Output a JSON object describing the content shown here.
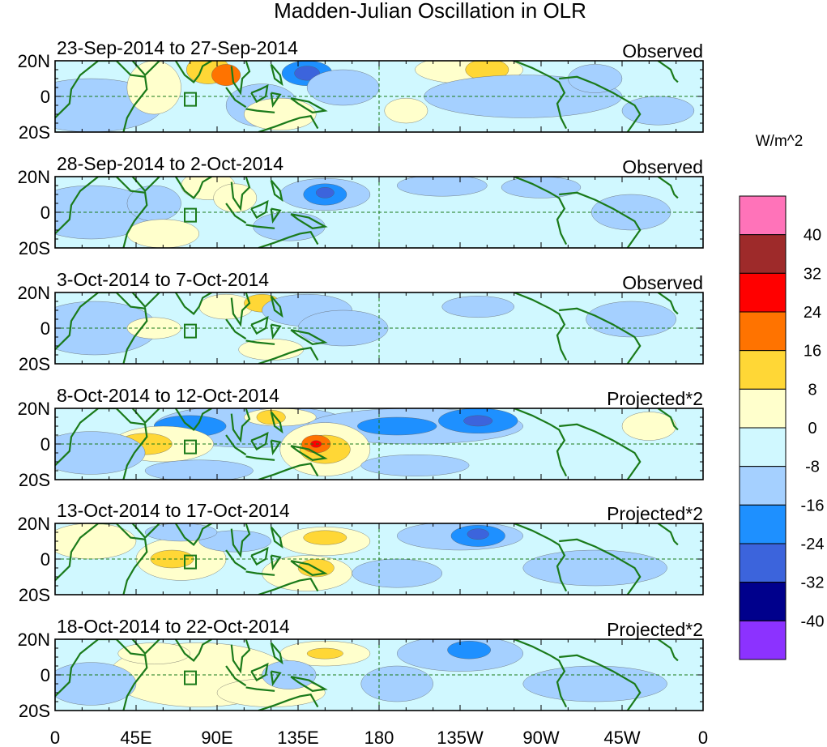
{
  "chart_data": {
    "type": "heatmap",
    "title": "Madden-Julian Oscillation in OLR",
    "units": "W/m^2",
    "lat_ticks": [
      "20N",
      "0",
      "20S"
    ],
    "lon_ticks": [
      "0",
      "45E",
      "90E",
      "135E",
      "180",
      "135W",
      "90W",
      "45W",
      "0"
    ],
    "lon_range": [
      0,
      360
    ],
    "lat_range": [
      -20,
      20
    ],
    "reference_lines": {
      "longitude": 180,
      "latitude": 0
    },
    "colorbar": {
      "labels": [
        "40",
        "32",
        "24",
        "16",
        "8",
        "0",
        "-8",
        "-16",
        "-24",
        "-32",
        "-40"
      ],
      "colors": [
        "#ff73b9",
        "#9e2a2a",
        "#ff0000",
        "#ff7300",
        "#ffd736",
        "#ffffcc",
        "#d0f8ff",
        "#a5d0ff",
        "#1e90ff",
        "#3c64dc",
        "#00008c",
        "#8c32ff"
      ]
    },
    "panels": [
      {
        "period": "23-Sep-2014 to 27-Sep-2014",
        "kind": "Observed",
        "anomalies": [
          {
            "lon": 20,
            "lat": -5,
            "rlon": 40,
            "rlat": 15,
            "level": -8
          },
          {
            "lon": 55,
            "lat": 5,
            "rlon": 15,
            "rlat": 15,
            "level": 8
          },
          {
            "lon": 85,
            "lat": 15,
            "rlon": 12,
            "rlat": 8,
            "level": 16
          },
          {
            "lon": 95,
            "lat": 12,
            "rlon": 8,
            "rlat": 6,
            "level": 24
          },
          {
            "lon": 115,
            "lat": -5,
            "rlon": 20,
            "rlat": 12,
            "level": -8
          },
          {
            "lon": 140,
            "lat": 13,
            "rlon": 14,
            "rlat": 7,
            "level": -16
          },
          {
            "lon": 140,
            "lat": 13,
            "rlon": 7,
            "rlat": 4,
            "level": -24
          },
          {
            "lon": 125,
            "lat": -10,
            "rlon": 20,
            "rlat": 9,
            "level": 8
          },
          {
            "lon": 160,
            "lat": 5,
            "rlon": 20,
            "rlat": 10,
            "level": -8
          },
          {
            "lon": 195,
            "lat": -8,
            "rlon": 12,
            "rlat": 7,
            "level": 8
          },
          {
            "lon": 230,
            "lat": 15,
            "rlon": 30,
            "rlat": 8,
            "level": 8
          },
          {
            "lon": 240,
            "lat": 15,
            "rlon": 12,
            "rlat": 6,
            "level": 16
          },
          {
            "lon": 260,
            "lat": 0,
            "rlon": 55,
            "rlat": 12,
            "level": -8
          },
          {
            "lon": 300,
            "lat": 10,
            "rlon": 15,
            "rlat": 8,
            "level": -8
          },
          {
            "lon": 335,
            "lat": -8,
            "rlon": 20,
            "rlat": 8,
            "level": -8
          }
        ]
      },
      {
        "period": "28-Sep-2014 to 2-Oct-2014",
        "kind": "Observed",
        "anomalies": [
          {
            "lon": 20,
            "lat": 0,
            "rlon": 35,
            "rlat": 15,
            "level": -8
          },
          {
            "lon": 55,
            "lat": 5,
            "rlon": 15,
            "rlat": 10,
            "level": -8
          },
          {
            "lon": 85,
            "lat": 15,
            "rlon": 15,
            "rlat": 8,
            "level": 8
          },
          {
            "lon": 100,
            "lat": 8,
            "rlon": 12,
            "rlat": 8,
            "level": 8
          },
          {
            "lon": 150,
            "lat": 10,
            "rlon": 25,
            "rlat": 9,
            "level": -8
          },
          {
            "lon": 150,
            "lat": 10,
            "rlon": 12,
            "rlat": 6,
            "level": -16
          },
          {
            "lon": 150,
            "lat": 11,
            "rlon": 5,
            "rlat": 3,
            "level": -24
          },
          {
            "lon": 130,
            "lat": -8,
            "rlon": 20,
            "rlat": 8,
            "level": -8
          },
          {
            "lon": 60,
            "lat": -12,
            "rlon": 20,
            "rlat": 8,
            "level": 8
          },
          {
            "lon": 215,
            "lat": 15,
            "rlon": 25,
            "rlat": 6,
            "level": -8
          },
          {
            "lon": 270,
            "lat": 14,
            "rlon": 22,
            "rlat": 6,
            "level": -8
          },
          {
            "lon": 320,
            "lat": 0,
            "rlon": 22,
            "rlat": 10,
            "level": -8
          }
        ]
      },
      {
        "period": "3-Oct-2014 to 7-Oct-2014",
        "kind": "Observed",
        "anomalies": [
          {
            "lon": 22,
            "lat": 0,
            "rlon": 35,
            "rlat": 15,
            "level": -8
          },
          {
            "lon": 95,
            "lat": 12,
            "rlon": 15,
            "rlat": 7,
            "level": 8
          },
          {
            "lon": 115,
            "lat": 14,
            "rlon": 10,
            "rlat": 5,
            "level": 16
          },
          {
            "lon": 55,
            "lat": 0,
            "rlon": 15,
            "rlat": 6,
            "level": 8
          },
          {
            "lon": 140,
            "lat": 10,
            "rlon": 25,
            "rlat": 9,
            "level": -8
          },
          {
            "lon": 160,
            "lat": 0,
            "rlon": 25,
            "rlat": 10,
            "level": -8
          },
          {
            "lon": 120,
            "lat": -12,
            "rlon": 18,
            "rlat": 6,
            "level": 8
          },
          {
            "lon": 235,
            "lat": 12,
            "rlon": 20,
            "rlat": 6,
            "level": -8
          },
          {
            "lon": 320,
            "lat": 5,
            "rlon": 25,
            "rlat": 10,
            "level": -8
          }
        ]
      },
      {
        "period": "8-Oct-2014 to 12-Oct-2014",
        "kind": "Projected*2",
        "anomalies": [
          {
            "lon": 110,
            "lat": 10,
            "rlon": 55,
            "rlat": 12,
            "level": -8
          },
          {
            "lon": 75,
            "lat": 10,
            "rlon": 20,
            "rlat": 6,
            "level": -16
          },
          {
            "lon": 200,
            "lat": 10,
            "rlon": 60,
            "rlat": 10,
            "level": -8
          },
          {
            "lon": 190,
            "lat": 10,
            "rlon": 22,
            "rlat": 5,
            "level": -16
          },
          {
            "lon": 235,
            "lat": 13,
            "rlon": 22,
            "rlat": 7,
            "level": -16
          },
          {
            "lon": 235,
            "lat": 13,
            "rlon": 8,
            "rlat": 3,
            "level": -24
          },
          {
            "lon": 60,
            "lat": 0,
            "rlon": 28,
            "rlat": 10,
            "level": 8
          },
          {
            "lon": 50,
            "lat": 0,
            "rlon": 15,
            "rlat": 6,
            "level": 16
          },
          {
            "lon": 125,
            "lat": 15,
            "rlon": 20,
            "rlat": 5,
            "level": 8
          },
          {
            "lon": 120,
            "lat": 15,
            "rlon": 8,
            "rlat": 4,
            "level": 16
          },
          {
            "lon": 150,
            "lat": -3,
            "rlon": 25,
            "rlat": 15,
            "level": 8
          },
          {
            "lon": 150,
            "lat": -3,
            "rlon": 14,
            "rlat": 8,
            "level": 16
          },
          {
            "lon": 145,
            "lat": 0,
            "rlon": 8,
            "rlat": 5,
            "level": 24
          },
          {
            "lon": 145,
            "lat": 0,
            "rlon": 3,
            "rlat": 2,
            "level": 32
          },
          {
            "lon": 80,
            "lat": -15,
            "rlon": 30,
            "rlat": 6,
            "level": -8
          },
          {
            "lon": 200,
            "lat": -12,
            "rlon": 30,
            "rlat": 6,
            "level": -8
          },
          {
            "lon": 20,
            "lat": -5,
            "rlon": 30,
            "rlat": 12,
            "level": -8
          },
          {
            "lon": 330,
            "lat": 10,
            "rlon": 15,
            "rlat": 8,
            "level": 8
          }
        ]
      },
      {
        "period": "13-Oct-2014 to 17-Oct-2014",
        "kind": "Projected*2",
        "anomalies": [
          {
            "lon": 20,
            "lat": 10,
            "rlon": 25,
            "rlat": 10,
            "level": 8
          },
          {
            "lon": 70,
            "lat": 0,
            "rlon": 25,
            "rlat": 12,
            "level": 8
          },
          {
            "lon": 65,
            "lat": 0,
            "rlon": 12,
            "rlat": 5,
            "level": 16
          },
          {
            "lon": 150,
            "lat": 10,
            "rlon": 25,
            "rlat": 8,
            "level": 8
          },
          {
            "lon": 150,
            "lat": 12,
            "rlon": 12,
            "rlat": 4,
            "level": 16
          },
          {
            "lon": 140,
            "lat": -8,
            "rlon": 25,
            "rlat": 10,
            "level": 8
          },
          {
            "lon": 145,
            "lat": -5,
            "rlon": 10,
            "rlat": 5,
            "level": 16
          },
          {
            "lon": 100,
            "lat": 10,
            "rlon": 20,
            "rlat": 6,
            "level": -8
          },
          {
            "lon": 225,
            "lat": 13,
            "rlon": 35,
            "rlat": 8,
            "level": -8
          },
          {
            "lon": 235,
            "lat": 13,
            "rlon": 15,
            "rlat": 6,
            "level": -16
          },
          {
            "lon": 235,
            "lat": 14,
            "rlon": 6,
            "rlat": 3,
            "level": -24
          },
          {
            "lon": 70,
            "lat": 15,
            "rlon": 20,
            "rlat": 5,
            "level": -8
          },
          {
            "lon": 190,
            "lat": -8,
            "rlon": 25,
            "rlat": 8,
            "level": -8
          },
          {
            "lon": 300,
            "lat": -5,
            "rlon": 40,
            "rlat": 10,
            "level": -8
          }
        ]
      },
      {
        "period": "18-Oct-2014 to 22-Oct-2014",
        "kind": "Projected*2",
        "anomalies": [
          {
            "lon": 80,
            "lat": 0,
            "rlon": 50,
            "rlat": 18,
            "level": 8
          },
          {
            "lon": 55,
            "lat": 12,
            "rlon": 20,
            "rlat": 6,
            "level": 8
          },
          {
            "lon": 120,
            "lat": -10,
            "rlon": 30,
            "rlat": 8,
            "level": 8
          },
          {
            "lon": 150,
            "lat": 12,
            "rlon": 25,
            "rlat": 7,
            "level": 8
          },
          {
            "lon": 150,
            "lat": 12,
            "rlon": 10,
            "rlat": 3,
            "level": 16
          },
          {
            "lon": 130,
            "lat": 0,
            "rlon": 15,
            "rlat": 8,
            "level": -8
          },
          {
            "lon": 225,
            "lat": 12,
            "rlon": 35,
            "rlat": 10,
            "level": -8
          },
          {
            "lon": 230,
            "lat": 14,
            "rlon": 12,
            "rlat": 5,
            "level": -16
          },
          {
            "lon": 190,
            "lat": -5,
            "rlon": 20,
            "rlat": 10,
            "level": -8
          },
          {
            "lon": 300,
            "lat": -5,
            "rlon": 40,
            "rlat": 10,
            "level": -8
          },
          {
            "lon": 20,
            "lat": -5,
            "rlon": 25,
            "rlat": 12,
            "level": -8
          }
        ]
      }
    ]
  }
}
